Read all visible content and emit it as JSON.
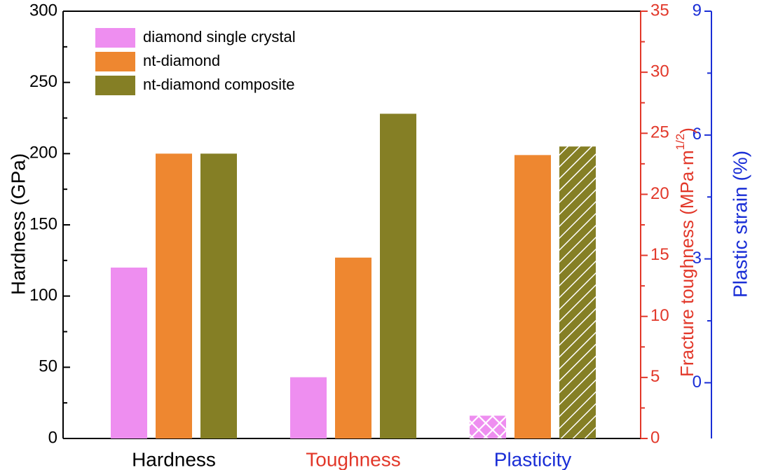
{
  "chart_data": {
    "type": "bar",
    "categories": [
      "Hardness",
      "Toughness",
      "Plasticity"
    ],
    "series": [
      {
        "name": "diamond single crystal",
        "color": "#EE8EF0",
        "values": [
          120,
          43,
          16
        ]
      },
      {
        "name": "nt-diamond",
        "color": "#EE8730",
        "values": [
          200,
          127,
          199
        ]
      },
      {
        "name": "nt-diamond composite",
        "color": "#857F25",
        "values": [
          200,
          228,
          205
        ]
      }
    ],
    "display_values": {
      "hardness_gpa": [
        120,
        200,
        200
      ],
      "fracture_toughness_mpa_m12": [
        5.0,
        14.8,
        26.6
      ],
      "plastic_strain_percent": [
        -0.53,
        5.95,
        6.15
      ]
    },
    "hatched": {
      "category": "Plasticity",
      "series": [
        "diamond single crystal",
        "nt-diamond composite"
      ],
      "patterns": [
        "crosshatch",
        "diagonal"
      ]
    },
    "axes": {
      "left": {
        "label": "Hardness (GPa)",
        "color": "#000000",
        "min": 0,
        "max": 300,
        "ticks": [
          "0",
          "50",
          "100",
          "150",
          "200",
          "250",
          "300"
        ],
        "tick_values": [
          0,
          50,
          100,
          150,
          200,
          250,
          300
        ]
      },
      "right1": {
        "label_main": "Fracture toughness (MPa·m",
        "label_sup": "1/2",
        "label_close": ")",
        "color": "#E2382A",
        "min": 0,
        "max": 35,
        "ticks": [
          "0",
          "5",
          "10",
          "15",
          "20",
          "25",
          "30",
          "35"
        ],
        "tick_values": [
          0,
          5,
          10,
          15,
          20,
          25,
          30,
          35
        ]
      },
      "right2": {
        "label": "Plastic strain (%)",
        "color": "#1A2ED6",
        "min": -1.35,
        "max": 9,
        "ticks": [
          "0",
          "3",
          "6",
          "9"
        ],
        "tick_values": [
          0,
          3,
          6,
          9
        ]
      }
    },
    "category_colors": [
      "#000000",
      "#E2382A",
      "#1A2ED6"
    ],
    "legend_position": "top-left",
    "grid": false
  }
}
